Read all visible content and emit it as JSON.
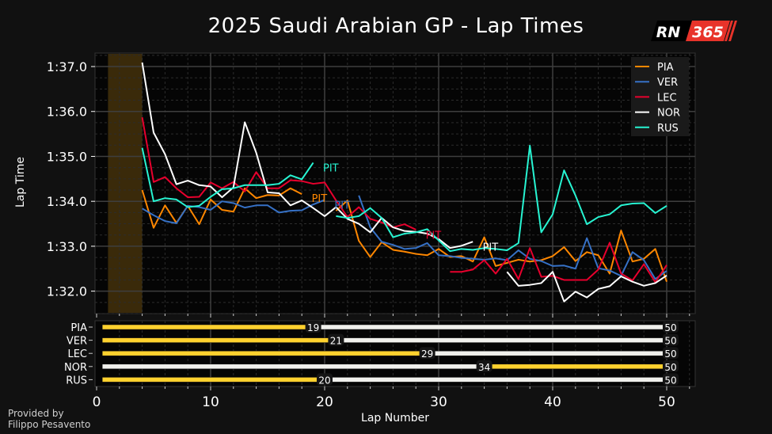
{
  "title": "2025 Saudi Arabian GP - Lap Times",
  "logo": {
    "text_left": "RN",
    "text_right": "365",
    "color": "#e8332a"
  },
  "credit": {
    "line1": "Provided by",
    "line2": "Filippo Pesavento"
  },
  "chart_data": [
    {
      "type": "line",
      "title": "2025 Saudi Arabian GP - Lap Times",
      "xlabel": "",
      "ylabel": "Lap Time",
      "xlim": [
        0,
        52.5
      ],
      "ylim": [
        91.5,
        97.3
      ],
      "yticks": [
        92,
        93,
        94,
        95,
        96,
        97
      ],
      "ytick_labels": [
        "1:32.0",
        "1:33.0",
        "1:34.0",
        "1:35.0",
        "1:36.0",
        "1:37.0"
      ],
      "grid": true,
      "legend": "top-right",
      "shaded_region": {
        "from_lap": 1,
        "to_lap": 4,
        "color": "#3a2a0a"
      },
      "first_lap": 4,
      "series": [
        {
          "name": "PIA",
          "color": "#ff8700",
          "times": [
            94.25,
            93.41,
            93.91,
            93.52,
            93.9,
            93.49,
            94.04,
            93.81,
            93.77,
            94.29,
            94.07,
            94.14,
            94.13,
            94.29,
            94.16,
            null,
            null,
            93.79,
            94.02,
            93.12,
            92.76,
            93.09,
            92.92,
            92.88,
            92.83,
            92.8,
            92.94,
            92.76,
            92.78,
            92.66,
            93.2,
            92.56,
            92.63,
            92.7,
            92.66,
            92.69,
            92.78,
            92.98,
            92.67,
            92.87,
            92.8,
            92.39,
            93.35,
            92.66,
            92.72,
            92.94,
            92.21
          ]
        },
        {
          "name": "VER",
          "color": "#3671c6",
          "times": [
            93.84,
            93.69,
            93.56,
            93.51,
            93.9,
            93.87,
            93.81,
            94.0,
            93.96,
            93.86,
            93.91,
            93.91,
            93.75,
            93.79,
            93.8,
            93.93,
            94.03,
            null,
            null,
            94.13,
            93.42,
            93.1,
            93.03,
            92.94,
            92.96,
            93.07,
            92.8,
            92.78,
            92.74,
            92.72,
            92.7,
            92.73,
            92.69,
            92.91,
            92.72,
            92.67,
            92.56,
            92.57,
            92.5,
            93.18,
            92.51,
            92.46,
            92.34,
            92.87,
            92.69,
            92.27,
            92.45
          ]
        },
        {
          "name": "LEC",
          "color": "#e8002d",
          "times": [
            95.87,
            94.43,
            94.54,
            94.29,
            94.09,
            94.1,
            94.42,
            94.29,
            94.43,
            94.22,
            94.65,
            94.29,
            94.29,
            94.47,
            94.45,
            94.39,
            94.42,
            94.02,
            93.65,
            93.87,
            93.61,
            93.53,
            93.42,
            93.49,
            93.37,
            null,
            null,
            92.43,
            92.43,
            92.48,
            92.69,
            92.39,
            92.72,
            92.27,
            92.96,
            92.32,
            92.34,
            92.25,
            92.25,
            92.25,
            92.48,
            93.08,
            92.39,
            92.24,
            92.6,
            92.2,
            92.58
          ]
        },
        {
          "name": "NOR",
          "color": "#ffffff",
          "times": [
            97.09,
            95.53,
            95.05,
            94.38,
            94.46,
            94.36,
            94.33,
            94.09,
            94.31,
            95.76,
            95.08,
            94.2,
            94.18,
            93.91,
            94.02,
            93.85,
            93.67,
            93.87,
            93.61,
            93.5,
            93.31,
            93.63,
            93.42,
            93.34,
            93.32,
            93.28,
            93.16,
            92.96,
            93.01,
            93.1,
            null,
            null,
            92.43,
            92.12,
            92.14,
            92.18,
            92.43,
            91.77,
            91.99,
            91.86,
            92.05,
            92.11,
            92.33,
            92.21,
            92.12,
            92.18,
            92.35
          ]
        },
        {
          "name": "RUS",
          "color": "#27f4d2",
          "times": [
            95.19,
            94.0,
            94.07,
            94.04,
            93.87,
            93.9,
            94.1,
            94.27,
            94.29,
            94.36,
            94.36,
            94.36,
            94.39,
            94.58,
            94.49,
            94.86,
            null,
            93.67,
            93.63,
            93.67,
            93.85,
            93.63,
            93.2,
            93.28,
            93.31,
            93.38,
            93.13,
            92.89,
            92.94,
            92.92,
            92.96,
            92.94,
            92.91,
            93.07,
            95.24,
            93.31,
            93.71,
            94.69,
            94.13,
            93.49,
            93.65,
            93.71,
            93.91,
            93.95,
            93.96,
            93.74,
            93.9
          ]
        }
      ],
      "annotations": [
        {
          "text": "PIT",
          "driver": "RUS",
          "lap": 20,
          "time": 94.75
        },
        {
          "text": "PIT",
          "driver": "PIA",
          "lap": 19,
          "time": 94.07
        },
        {
          "text": "PIT",
          "driver": "VER",
          "lap": 21,
          "time": 93.92
        },
        {
          "text": "PIT",
          "driver": "LEC",
          "lap": 29,
          "time": 93.25
        },
        {
          "text": "PIT",
          "driver": "NOR",
          "lap": 34,
          "time": 92.99
        }
      ]
    },
    {
      "type": "bar",
      "orientation": "horizontal",
      "xlabel": "Lap Number",
      "xlim": [
        0,
        52.5
      ],
      "xticks": [
        0,
        10,
        20,
        30,
        40,
        50
      ],
      "drivers": [
        "PIA",
        "VER",
        "LEC",
        "NOR",
        "RUS"
      ],
      "stints": [
        [
          {
            "start": 0.5,
            "end": 19,
            "color": "#ffd12e"
          },
          {
            "start": 19,
            "end": 50,
            "color": "#f0f0ec"
          }
        ],
        [
          {
            "start": 0.5,
            "end": 21,
            "color": "#ffd12e"
          },
          {
            "start": 21,
            "end": 50,
            "color": "#f0f0ec"
          }
        ],
        [
          {
            "start": 0.5,
            "end": 29,
            "color": "#ffd12e"
          },
          {
            "start": 29,
            "end": 50,
            "color": "#f0f0ec"
          }
        ],
        [
          {
            "start": 0.5,
            "end": 34,
            "color": "#f0f0ec"
          },
          {
            "start": 34,
            "end": 50,
            "color": "#ffd12e"
          }
        ],
        [
          {
            "start": 0.5,
            "end": 20,
            "color": "#ffd12e"
          },
          {
            "start": 20,
            "end": 50,
            "color": "#f0f0ec"
          }
        ]
      ],
      "pit_labels": [
        [
          "19",
          "50"
        ],
        [
          "21",
          "50"
        ],
        [
          "29",
          "50"
        ],
        [
          "34",
          "50"
        ],
        [
          "20",
          "50"
        ]
      ]
    }
  ]
}
